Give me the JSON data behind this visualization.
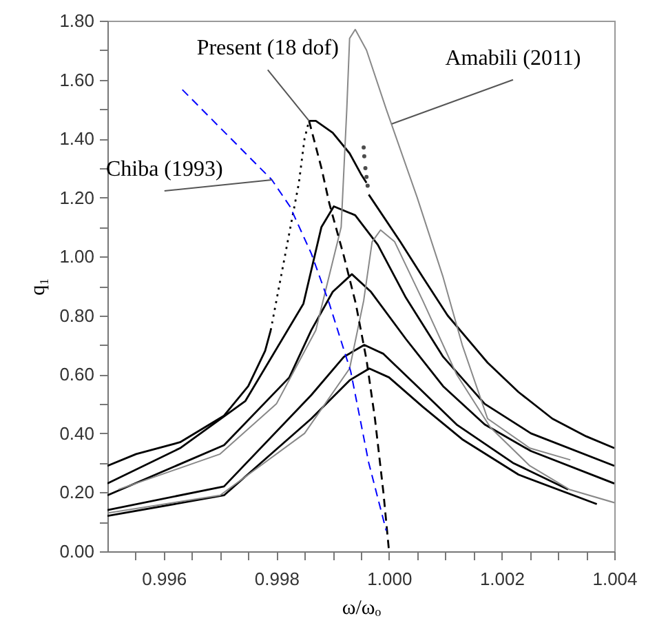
{
  "chart_data": {
    "type": "line",
    "xlabel": "ω/ωₒ",
    "ylabel": "q₁",
    "xlim": [
      0.995,
      1.004
    ],
    "ylim": [
      0,
      1.8
    ],
    "xticks": [
      {
        "value": 0.9955,
        "label": null
      },
      0.996,
      {
        "value": 0.9965,
        "label": null
      },
      {
        "value": 0.997,
        "label": null
      },
      {
        "value": 0.9975,
        "label": null
      },
      0.998,
      {
        "value": 0.9985,
        "label": null
      },
      {
        "value": 0.999,
        "label": null
      },
      {
        "value": 0.9995,
        "label": null
      },
      {
        "value": 1,
        "label": "1.000"
      },
      {
        "value": 1.0005,
        "label": null
      },
      {
        "value": 1.001,
        "label": null
      },
      {
        "value": 1.0015,
        "label": null
      },
      1.002,
      {
        "value": 1.0025,
        "label": null
      },
      {
        "value": 1.003,
        "label": null
      },
      {
        "value": 1.0035,
        "label": null
      },
      1.004
    ],
    "yticks": [
      {
        "value": 0,
        "label": "0.00"
      },
      {
        "value": 0.1,
        "label": null
      },
      {
        "value": 0.2,
        "label": "0.20"
      },
      {
        "value": 0.3,
        "label": null
      },
      {
        "value": 0.4,
        "label": "0.40"
      },
      {
        "value": 0.5,
        "label": null
      },
      {
        "value": 0.6,
        "label": "0.60"
      },
      {
        "value": 0.7,
        "label": null
      },
      {
        "value": 0.8,
        "label": "0.80"
      },
      {
        "value": 0.9,
        "label": null
      },
      {
        "value": 1,
        "label": "1.00"
      },
      {
        "value": 1.1,
        "label": null
      },
      {
        "value": 1.2,
        "label": "1.20"
      },
      {
        "value": 1.3,
        "label": null
      },
      {
        "value": 1.4,
        "label": "1.40"
      },
      {
        "value": 1.5,
        "label": null
      },
      {
        "value": 1.6,
        "label": "1.60"
      },
      {
        "value": 1.7,
        "label": null
      },
      {
        "value": 1.8,
        "label": "1.80"
      }
    ],
    "series": [
      {
        "color": "#000000",
        "line_style": "solid",
        "x": [
          0.995,
          0.99551,
          0.99629,
          0.99707,
          0.9975,
          0.9978,
          0.9979
        ],
        "values": [
          0.29,
          0.33,
          0.37,
          0.46,
          0.56,
          0.68,
          0.75
        ]
      },
      {
        "color": "#000000",
        "line_style": "dotted",
        "x": [
          0.9979,
          0.9981,
          0.99825,
          0.9984,
          0.9985,
          0.99858
        ],
        "values": [
          0.75,
          0.95,
          1.1,
          1.25,
          1.4,
          1.46
        ]
      },
      {
        "color": "#000000",
        "line_style": "solid",
        "x": [
          0.99858,
          0.9987,
          0.999,
          0.9993,
          0.9995,
          0.9996
        ],
        "values": [
          1.46,
          1.46,
          1.42,
          1.35,
          1.28,
          1.25
        ]
      },
      {
        "type": "scatter",
        "marker": "circle",
        "color": "#000000",
        "x": [
          0.99955,
          0.99956,
          0.99958,
          0.9996,
          0.99962
        ],
        "values": [
          1.37,
          1.34,
          1.3,
          1.27,
          1.24
        ]
      },
      {
        "color": "#000000",
        "line_style": "solid",
        "x": [
          0.99964,
          1.0002,
          1.0006,
          1.00104,
          1.00175,
          1.0023,
          1.0029,
          1.0035,
          1.004
        ],
        "values": [
          1.21,
          1.05,
          0.93,
          0.8,
          0.64,
          0.54,
          0.45,
          0.39,
          0.35
        ]
      },
      {
        "color": "#000000",
        "line_style": "solid",
        "x": [
          0.995,
          0.99629,
          0.99745,
          0.99848,
          0.9988,
          0.99902,
          0.9994,
          0.9998,
          1.0003,
          1.00096,
          1.0017,
          1.00252,
          1.004
        ],
        "values": [
          0.23,
          0.35,
          0.51,
          0.84,
          1.1,
          1.17,
          1.14,
          1.04,
          0.86,
          0.66,
          0.5,
          0.4,
          0.29
        ]
      },
      {
        "color": "#000000",
        "line_style": "solid",
        "x": [
          0.995,
          0.99707,
          0.99823,
          0.99862,
          0.999,
          0.99934,
          0.99968,
          1.0003,
          1.00096,
          1.0017,
          1.00252,
          1.004
        ],
        "values": [
          0.19,
          0.36,
          0.59,
          0.75,
          0.88,
          0.94,
          0.88,
          0.72,
          0.56,
          0.43,
          0.34,
          0.23
        ]
      },
      {
        "color": "#000000",
        "line_style": "solid",
        "x": [
          0.995,
          0.99707,
          0.99862,
          0.9992,
          0.99956,
          0.9999,
          1.0005,
          1.0012,
          1.0022,
          1.00318
        ],
        "values": [
          0.14,
          0.22,
          0.53,
          0.66,
          0.7,
          0.67,
          0.56,
          0.43,
          0.3,
          0.21
        ]
      },
      {
        "color": "#000000",
        "line_style": "solid",
        "x": [
          0.995,
          0.99707,
          0.99862,
          0.9993,
          0.99965,
          1.0,
          1.0006,
          1.0013,
          1.0023,
          1.00369
        ],
        "values": [
          0.12,
          0.19,
          0.45,
          0.58,
          0.62,
          0.59,
          0.49,
          0.38,
          0.26,
          0.16
        ]
      },
      {
        "color": "#888888",
        "line_style": "solid",
        "x": [
          0.9952,
          0.997,
          0.998,
          0.9987,
          0.99915,
          0.99925,
          0.9993,
          0.9994,
          0.9996,
          0.99995,
          1.0005,
          1.00096,
          1.0013,
          1.00175,
          1.0025,
          1.00322
        ],
        "values": [
          0.21,
          0.33,
          0.5,
          0.75,
          1.1,
          1.5,
          1.74,
          1.77,
          1.7,
          1.5,
          1.2,
          0.93,
          0.7,
          0.45,
          0.35,
          0.31
        ]
      },
      {
        "color": "#888888",
        "line_style": "solid",
        "x": [
          0.995,
          0.997,
          0.9985,
          0.9993,
          0.99955,
          0.9997,
          0.99985,
          1.0001,
          1.0006,
          1.0012,
          1.0018,
          1.0025,
          1.0032,
          1.004
        ],
        "values": [
          0.13,
          0.19,
          0.4,
          0.62,
          0.85,
          1.05,
          1.09,
          1.05,
          0.85,
          0.6,
          0.42,
          0.29,
          0.21,
          0.165
        ]
      },
      {
        "color": "#000000",
        "line_style": "dashed",
        "x": [
          0.99858,
          0.9988,
          0.99894,
          0.9992,
          0.99941,
          0.9996,
          0.99975,
          0.9999,
          1.0
        ],
        "values": [
          1.46,
          1.3,
          1.18,
          1.0,
          0.84,
          0.65,
          0.45,
          0.2,
          0.0
        ]
      },
      {
        "color": "#0000ff",
        "line_style": "dashed",
        "x": [
          0.99633,
          0.99792,
          0.99824,
          0.99862,
          0.99894,
          0.99932,
          0.99964,
          0.99995
        ],
        "values": [
          1.566,
          1.26,
          1.17,
          1.01,
          0.84,
          0.61,
          0.3,
          0.07
        ]
      }
    ],
    "annotations": [
      {
        "text": "Present (18 dof)",
        "x": 0.99858,
        "y": 1.46
      },
      {
        "text": "Amabili (2011)",
        "x": 1.00005,
        "y": 1.45
      },
      {
        "text": "Chiba (1993)",
        "x": 0.99792,
        "y": 1.26
      }
    ]
  }
}
